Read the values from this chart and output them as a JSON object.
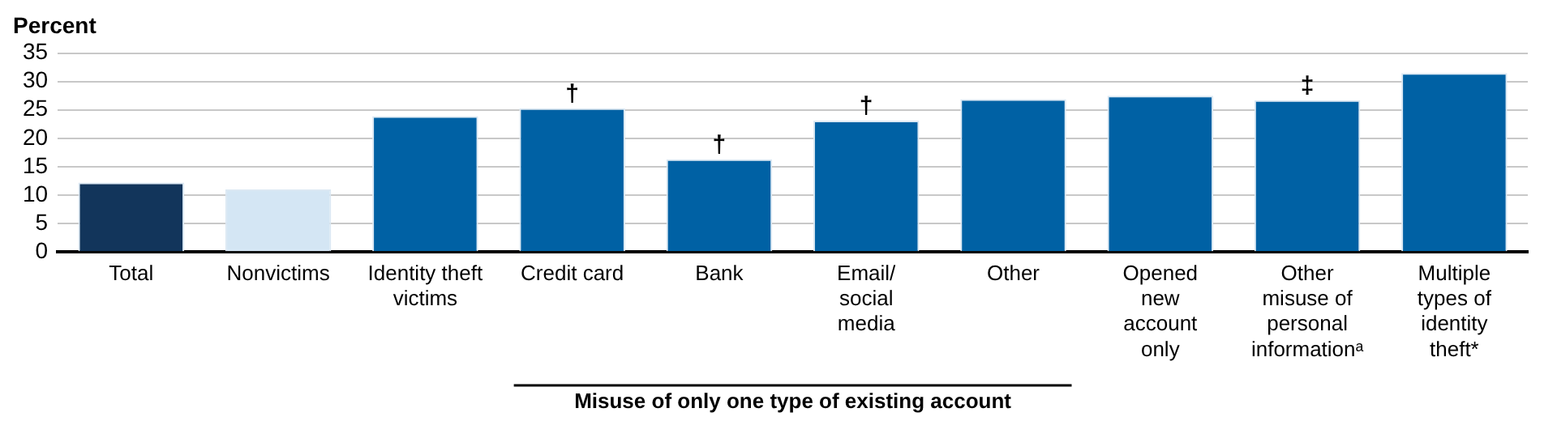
{
  "chart_data": {
    "type": "bar",
    "title": "Percent",
    "categories": [
      "Total",
      "Nonvictims",
      "Identity theft victims",
      "Credit card",
      "Bank",
      "Email/ social media",
      "Other",
      "Opened new account only",
      "Other misuse of personal informationᵃ",
      "Multiple types of identity theft*"
    ],
    "values": [
      12.2,
      11.0,
      23.9,
      25.3,
      16.3,
      23.1,
      26.9,
      27.5,
      26.7,
      31.5
    ],
    "colors": [
      "#12355b",
      "#d4e6f4",
      "#0061a4",
      "#0061a4",
      "#0061a4",
      "#0061a4",
      "#0061a4",
      "#0061a4",
      "#0061a4",
      "#0061a4"
    ],
    "ylim": [
      0,
      35
    ],
    "yticks": [
      0,
      5,
      10,
      15,
      20,
      25,
      30,
      35
    ],
    "grid": "y",
    "annotations": [
      {
        "text": "†",
        "x": "Credit card",
        "y": 25.3
      },
      {
        "text": "†",
        "x": "Bank",
        "y": 16.3
      },
      {
        "text": "†",
        "x": "Email/ social media",
        "y": 23.1
      },
      {
        "text": "‡",
        "x": "Other misuse of personal informationᵃ",
        "y": 26.7
      },
      "Misuse of only one type of existing account"
    ]
  }
}
